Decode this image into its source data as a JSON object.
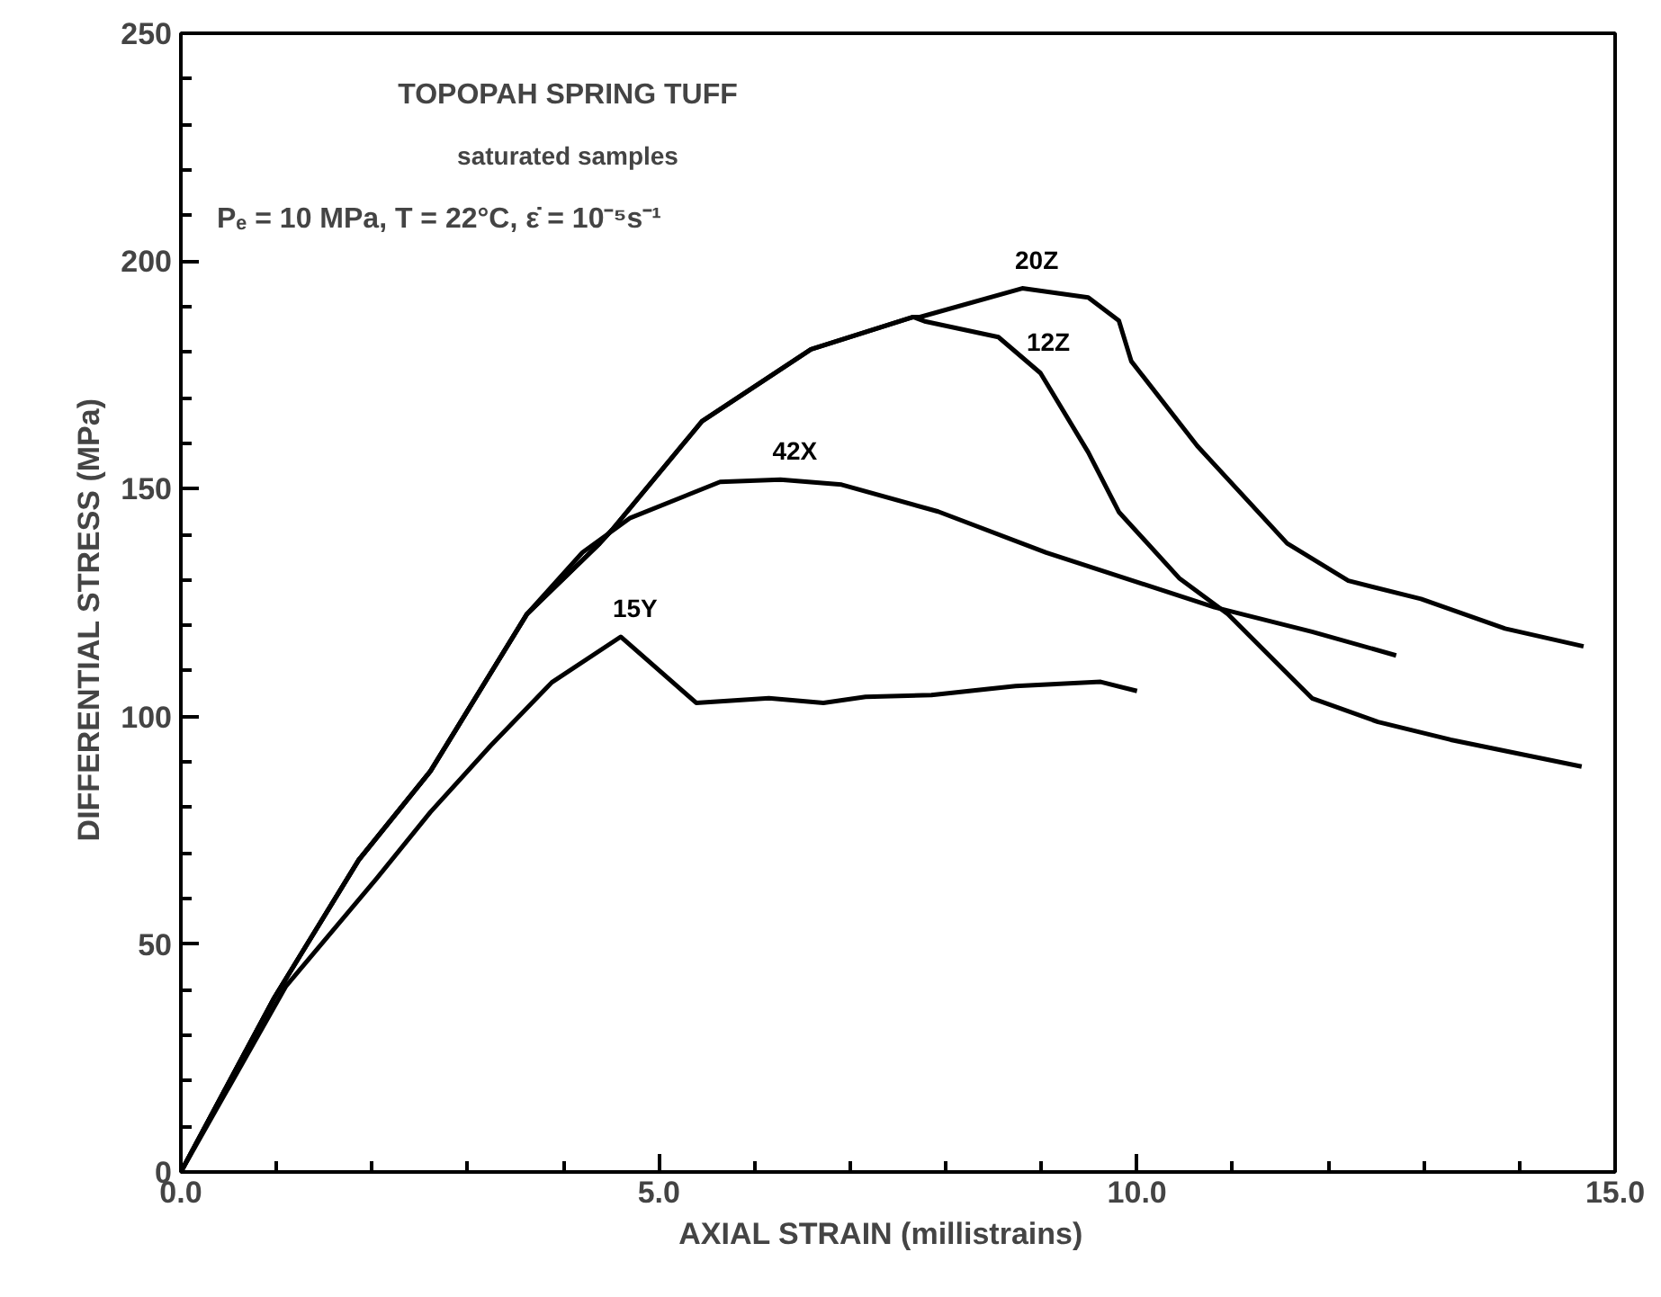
{
  "chart_data": {
    "type": "line",
    "xlabel": "AXIAL STRAIN     (millistrains)",
    "ylabel": "DIFFERENTIAL STRESS     (MPa)",
    "xlim": [
      0,
      15
    ],
    "ylim": [
      0,
      250
    ],
    "xticks": [
      {
        "value": 0,
        "label": "0.0"
      },
      {
        "value": 1,
        "label": null
      },
      {
        "value": 2,
        "label": null
      },
      {
        "value": 3,
        "label": null
      },
      {
        "value": 4,
        "label": null
      },
      {
        "value": 5,
        "label": "5.0"
      },
      {
        "value": 6,
        "label": null
      },
      {
        "value": 7,
        "label": null
      },
      {
        "value": 8,
        "label": null
      },
      {
        "value": 9,
        "label": null
      },
      {
        "value": 10,
        "label": "10.0"
      },
      {
        "value": 11,
        "label": null
      },
      {
        "value": 12,
        "label": null
      },
      {
        "value": 13,
        "label": null
      },
      {
        "value": 14,
        "label": null
      },
      {
        "value": 15,
        "label": "15.0"
      }
    ],
    "yticks": [
      0,
      {
        "value": 10,
        "label": null
      },
      {
        "value": 20,
        "label": null
      },
      {
        "value": 30,
        "label": null
      },
      {
        "value": 40,
        "label": null
      },
      50,
      {
        "value": 60,
        "label": null
      },
      {
        "value": 70,
        "label": null
      },
      {
        "value": 80,
        "label": null
      },
      {
        "value": 90,
        "label": null
      },
      100,
      {
        "value": 110,
        "label": null
      },
      {
        "value": 120,
        "label": null
      },
      {
        "value": 130,
        "label": null
      },
      {
        "value": 140,
        "label": null
      },
      150,
      {
        "value": 160,
        "label": null
      },
      {
        "value": 170,
        "label": null
      },
      {
        "value": 180,
        "label": null
      },
      {
        "value": 190,
        "label": null
      },
      200,
      {
        "value": 210,
        "label": null
      },
      {
        "value": 220,
        "label": null
      },
      {
        "value": 230,
        "label": null
      },
      {
        "value": 240,
        "label": null
      },
      250
    ],
    "grid": false,
    "marker": "none",
    "line_style": "solid",
    "series": [
      {
        "name": "20Z",
        "color": "#000000",
        "x": [
          0,
          0.97,
          1.86,
          2.61,
          3.62,
          4.38,
          4.51,
          5.45,
          6.59,
          7.66,
          7.73,
          8.8,
          9.49,
          9.81,
          9.94,
          10.63,
          11.57,
          12.21,
          12.97,
          13.85,
          14.67
        ],
        "values": [
          0,
          38,
          68.5,
          88,
          122.5,
          138,
          141,
          164.8,
          180.6,
          187.7,
          187.7,
          194,
          192,
          186.9,
          178,
          159.4,
          138,
          129.8,
          125.8,
          119.3,
          115.4
        ]
      },
      {
        "name": "12Z",
        "color": "#000000",
        "x": [
          0,
          0.97,
          1.86,
          2.61,
          3.62,
          4.38,
          4.51,
          5.45,
          6.59,
          7.66,
          7.79,
          8.55,
          8.99,
          9.49,
          9.81,
          10.44,
          10.95,
          11.83,
          12.52,
          13.28,
          14.65
        ],
        "values": [
          0,
          38,
          68.5,
          88,
          122.5,
          138,
          141,
          164.8,
          180.6,
          187.7,
          186.7,
          183.3,
          175.4,
          158,
          144.9,
          130.4,
          122.5,
          104,
          98.8,
          94.9,
          89
        ]
      },
      {
        "name": "42X",
        "color": "#000000",
        "x": [
          0,
          0.97,
          1.86,
          2.61,
          3.62,
          4.2,
          4.7,
          5.64,
          6.27,
          6.91,
          7.92,
          9.05,
          10.81,
          11.83,
          12.71
        ],
        "values": [
          0,
          38,
          68.5,
          88,
          122.5,
          136,
          143.6,
          151.5,
          152,
          150.9,
          145,
          136,
          124,
          118.6,
          113.4
        ]
      },
      {
        "name": "15Y",
        "color": "#000000",
        "x": [
          0,
          1.1,
          2.05,
          2.61,
          3.24,
          3.88,
          4.6,
          5.39,
          6.15,
          6.72,
          7.16,
          7.85,
          8.73,
          9.62,
          10.0
        ],
        "values": [
          0,
          40.8,
          64.5,
          79,
          93.6,
          107.5,
          117.5,
          103,
          104,
          103,
          104.3,
          104.7,
          106.7,
          107.6,
          105.6
        ]
      }
    ],
    "annotations": [
      "TOPOPAH SPRING TUFF",
      "saturated samples",
      "Pₑ = 10 MPa, T = 22°C, ε̇ = 10⁻⁵s⁻¹"
    ]
  }
}
